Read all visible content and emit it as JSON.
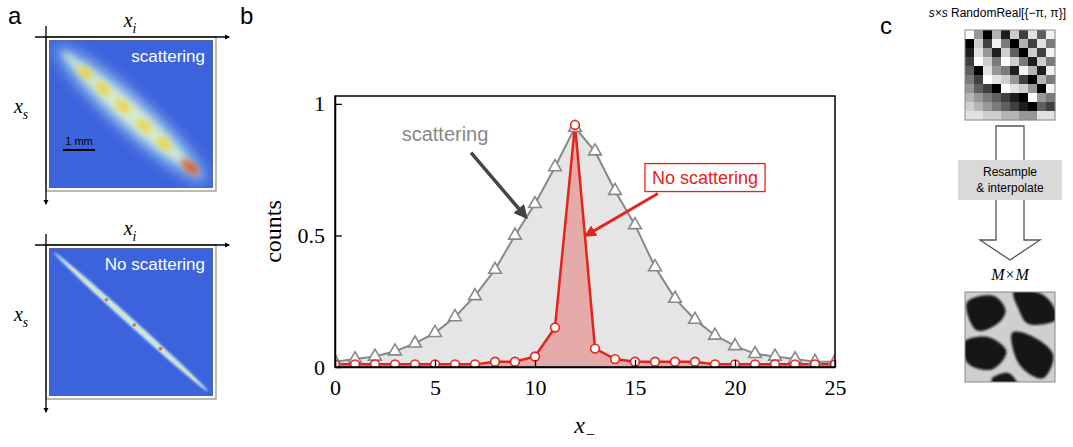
{
  "panel_labels": [
    "a",
    "b",
    "c"
  ],
  "panel_a": {
    "images": [
      {
        "title": "scattering",
        "x_axis": {
          "text": "x",
          "sub": "i"
        },
        "y_axis": {
          "text": "x",
          "sub": "s"
        },
        "scale_bar": "1 mm"
      },
      {
        "title": "No scattering",
        "x_axis": {
          "text": "x",
          "sub": "i"
        },
        "y_axis": {
          "text": "x",
          "sub": "s"
        }
      }
    ]
  },
  "chart_data": {
    "type": "line",
    "xlabel": {
      "text": "x",
      "sub": "−"
    },
    "ylabel": "counts",
    "x": [
      0,
      1,
      2,
      3,
      4,
      5,
      6,
      7,
      8,
      9,
      10,
      11,
      12,
      13,
      14,
      15,
      16,
      17,
      18,
      19,
      20,
      21,
      22,
      23,
      24,
      25
    ],
    "series": [
      {
        "name": "scattering",
        "color": "#888888",
        "marker": "triangle",
        "values": [
          0.02,
          0.03,
          0.04,
          0.06,
          0.09,
          0.13,
          0.19,
          0.27,
          0.37,
          0.5,
          0.62,
          0.76,
          0.91,
          0.82,
          0.67,
          0.54,
          0.38,
          0.26,
          0.18,
          0.12,
          0.08,
          0.05,
          0.04,
          0.03,
          0.02,
          0.02
        ]
      },
      {
        "name": "No scattering",
        "color": "#e5231b",
        "marker": "circle",
        "values": [
          0.01,
          0.01,
          0.01,
          0.01,
          0.01,
          0.01,
          0.01,
          0.01,
          0.02,
          0.02,
          0.04,
          0.15,
          0.92,
          0.07,
          0.03,
          0.02,
          0.02,
          0.02,
          0.02,
          0.01,
          0.01,
          0.01,
          0.01,
          0.01,
          0.01,
          0.01
        ]
      }
    ],
    "xlim": [
      0,
      25
    ],
    "ylim": [
      0,
      1.03
    ],
    "xticks": [
      0,
      5,
      10,
      15,
      20,
      25
    ],
    "yticks": [
      0,
      0.5,
      1
    ]
  },
  "panel_c": {
    "title": "s×s RandomReal[{−π, π}]",
    "step": "Resample & interpolate",
    "output": "M×M"
  }
}
